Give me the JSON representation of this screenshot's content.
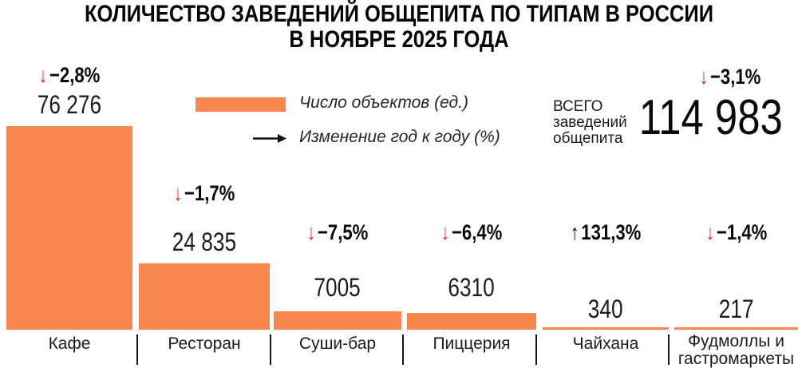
{
  "title": {
    "line1": "КОЛИЧЕСТВО ЗАВЕДЕНИЙ ОБЩЕПИТА ПО ТИПАМ В РОССИИ",
    "line2": "В НОЯБРЕ 2025 ГОДА"
  },
  "legend": {
    "bar_label": "Число объектов (ед.)",
    "arrow_label": "Изменение год к году (%)"
  },
  "total": {
    "label_line1": "ВСЕГО",
    "label_line2": "заведений",
    "label_line3": "общепита",
    "value": "114 983",
    "change": "−3,1%",
    "arrow": "↓"
  },
  "colors": {
    "bar": "#F8874E",
    "negative_arrow": "#EE2E24",
    "positive_arrow": "#0A0A0A",
    "text": "#141414"
  },
  "chart_data": {
    "type": "bar",
    "title": "КОЛИЧЕСТВО ЗАВЕДЕНИЙ ОБЩЕПИТА ПО ТИПАМ В РОССИИ В НОЯБРЕ 2025 ГОДА",
    "categories": [
      "Кафе",
      "Ресторан",
      "Суши-бар",
      "Пиццерия",
      "Чайхана",
      "Фудмоллы и гастромаркеты"
    ],
    "values": [
      76276,
      24835,
      7005,
      6310,
      340,
      217
    ],
    "value_labels": [
      "76 276",
      "24 835",
      "7005",
      "6310",
      "340",
      "217"
    ],
    "changes": [
      -2.8,
      -1.7,
      -7.5,
      -6.4,
      131.3,
      -1.4
    ],
    "change_labels": [
      "−2,8%",
      "−1,7%",
      "−7,5%",
      "−6,4%",
      "131,3%",
      "−1,4%"
    ],
    "change_arrows": [
      "↓",
      "↓",
      "↓",
      "↓",
      "↑",
      "↓"
    ],
    "series_name": "Число объектов (ед.)",
    "series2_name": "Изменение год к году (%)",
    "total": 114983,
    "total_change": -3.1,
    "ylim": [
      0,
      80000
    ],
    "grid": false,
    "legend_position": "top-center"
  }
}
